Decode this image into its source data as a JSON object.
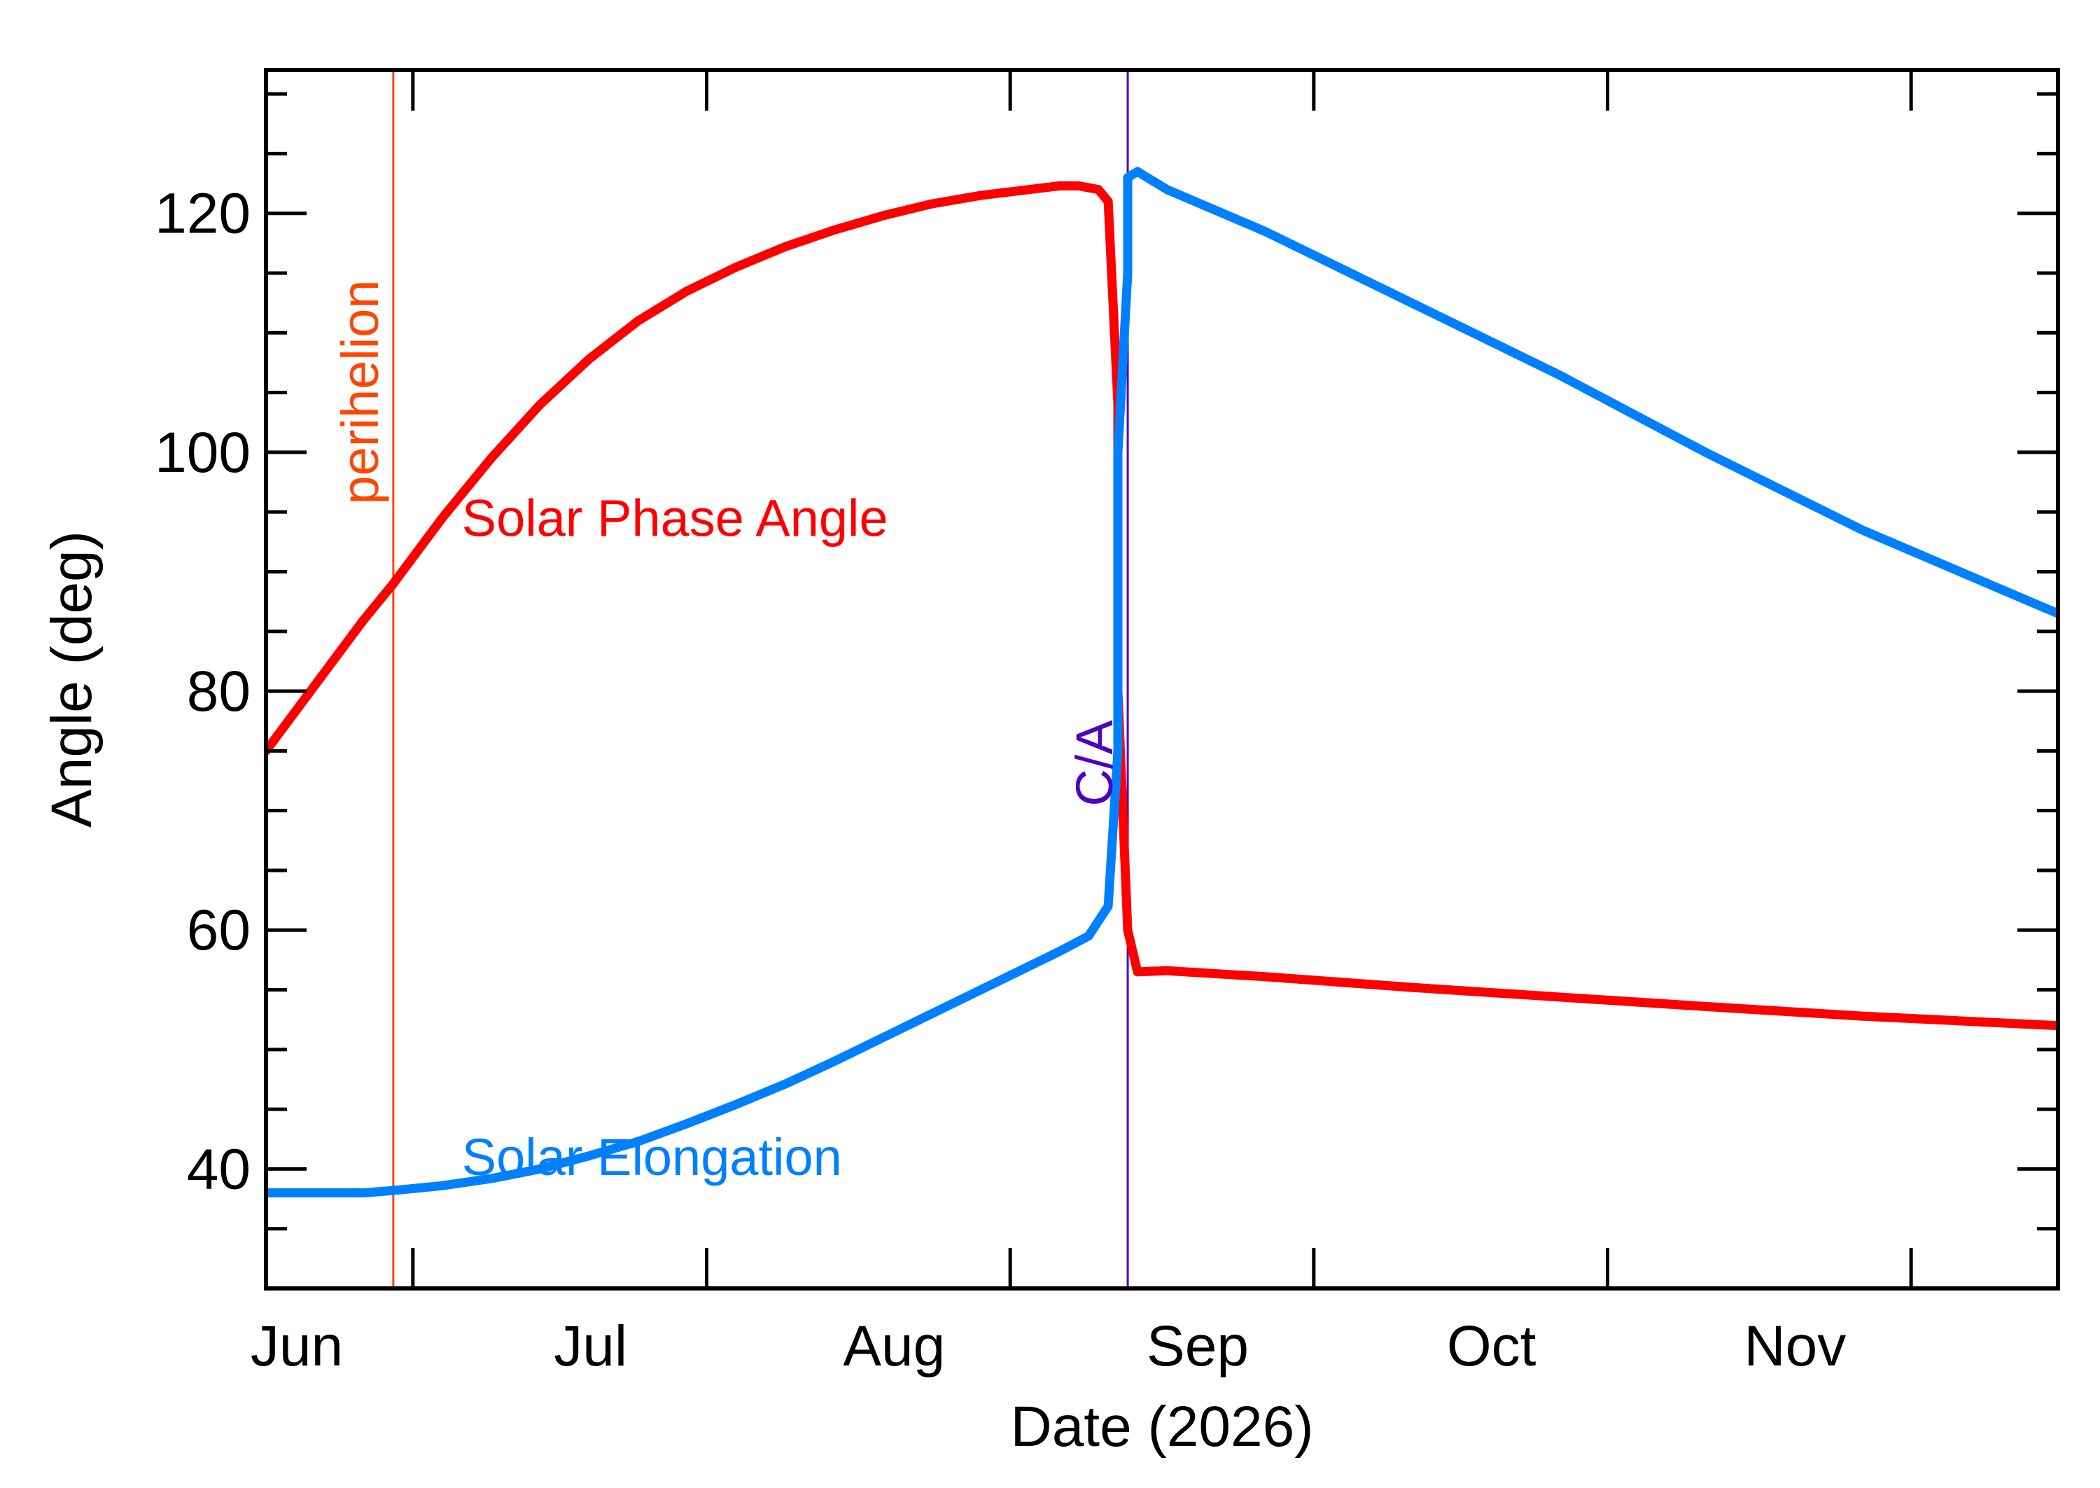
{
  "chart_data": {
    "type": "line",
    "xlabel": "Date (2026)",
    "ylabel": "Angle (deg)",
    "xlim": [
      "2026-05-31",
      "2026-11-30"
    ],
    "ylim": [
      30,
      132
    ],
    "x_ticks": [
      {
        "date": "2026-06-01",
        "label": "Jun"
      },
      {
        "date": "2026-07-01",
        "label": "Jul"
      },
      {
        "date": "2026-08-01",
        "label": "Aug"
      },
      {
        "date": "2026-09-01",
        "label": "Sep"
      },
      {
        "date": "2026-10-01",
        "label": "Oct"
      },
      {
        "date": "2026-11-01",
        "label": "Nov"
      }
    ],
    "y_ticks": [
      40,
      60,
      80,
      100,
      120
    ],
    "grid": false,
    "series": [
      {
        "name": "Solar Phase Angle",
        "color": "#ff0000",
        "points": [
          [
            "2026-05-31",
            75.0
          ],
          [
            "2026-06-05",
            80.5
          ],
          [
            "2026-06-10",
            86.0
          ],
          [
            "2026-06-13",
            89.0
          ],
          [
            "2026-06-18",
            94.5
          ],
          [
            "2026-06-23",
            99.5
          ],
          [
            "2026-06-28",
            104.0
          ],
          [
            "2026-07-03",
            107.8
          ],
          [
            "2026-07-08",
            111.0
          ],
          [
            "2026-07-13",
            113.5
          ],
          [
            "2026-07-18",
            115.5
          ],
          [
            "2026-07-23",
            117.2
          ],
          [
            "2026-07-28",
            118.6
          ],
          [
            "2026-08-02",
            119.8
          ],
          [
            "2026-08-07",
            120.8
          ],
          [
            "2026-08-12",
            121.5
          ],
          [
            "2026-08-17",
            122.0
          ],
          [
            "2026-08-20",
            122.3
          ],
          [
            "2026-08-22",
            122.3
          ],
          [
            "2026-08-24",
            122.0
          ],
          [
            "2026-08-25",
            121.0
          ],
          [
            "2026-08-26",
            104.0
          ],
          [
            "2026-08-26",
            80.0
          ],
          [
            "2026-08-27",
            60.0
          ],
          [
            "2026-08-28",
            56.5
          ],
          [
            "2026-08-31",
            56.6
          ],
          [
            "2026-09-10",
            56.1
          ],
          [
            "2026-09-25",
            55.2
          ],
          [
            "2026-10-10",
            54.4
          ],
          [
            "2026-10-25",
            53.6
          ],
          [
            "2026-11-10",
            52.8
          ],
          [
            "2026-11-30",
            52.0
          ]
        ]
      },
      {
        "name": "Solar Elongation",
        "color": "#0080ff",
        "points": [
          [
            "2026-05-31",
            38.0
          ],
          [
            "2026-06-05",
            38.0
          ],
          [
            "2026-06-10",
            38.0
          ],
          [
            "2026-06-13",
            38.2
          ],
          [
            "2026-06-18",
            38.6
          ],
          [
            "2026-06-23",
            39.2
          ],
          [
            "2026-06-28",
            40.0
          ],
          [
            "2026-07-03",
            41.1
          ],
          [
            "2026-07-08",
            42.3
          ],
          [
            "2026-07-13",
            43.8
          ],
          [
            "2026-07-18",
            45.4
          ],
          [
            "2026-07-23",
            47.1
          ],
          [
            "2026-07-28",
            49.0
          ],
          [
            "2026-08-02",
            51.0
          ],
          [
            "2026-08-07",
            53.0
          ],
          [
            "2026-08-12",
            55.0
          ],
          [
            "2026-08-17",
            57.0
          ],
          [
            "2026-08-20",
            58.2
          ],
          [
            "2026-08-23",
            59.5
          ],
          [
            "2026-08-25",
            62.0
          ],
          [
            "2026-08-26",
            75.0
          ],
          [
            "2026-08-26",
            100.0
          ],
          [
            "2026-08-27",
            115.0
          ],
          [
            "2026-08-27",
            123.0
          ],
          [
            "2026-08-28",
            123.5
          ],
          [
            "2026-08-31",
            122.0
          ],
          [
            "2026-09-10",
            118.5
          ],
          [
            "2026-09-25",
            112.5
          ],
          [
            "2026-10-10",
            106.5
          ],
          [
            "2026-10-25",
            100.0
          ],
          [
            "2026-11-10",
            93.5
          ],
          [
            "2026-11-30",
            86.5
          ]
        ]
      }
    ],
    "vlines": [
      {
        "name": "perihelion",
        "date": "2026-06-13",
        "color": "#ff4500"
      },
      {
        "name": "C/A",
        "date": "2026-08-27",
        "color": "#5000c0"
      }
    ],
    "annotations": [
      {
        "text": "Solar Phase Angle",
        "date": "2026-06-20",
        "y": 93,
        "color": "#ff0000"
      },
      {
        "text": "Solar Elongation",
        "date": "2026-06-20",
        "y": 39.5,
        "color": "#0080ff"
      }
    ]
  }
}
